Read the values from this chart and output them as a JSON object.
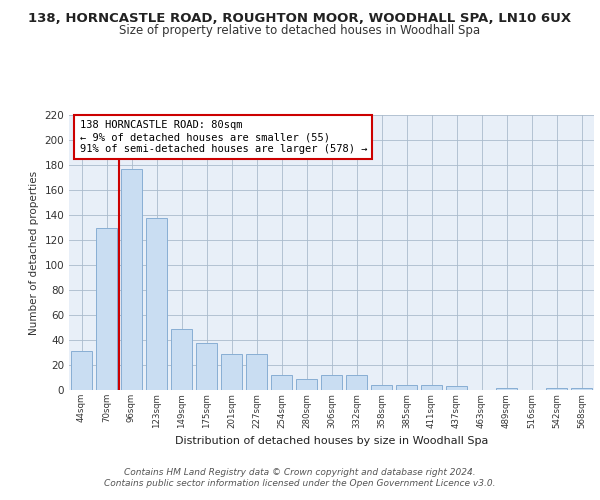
{
  "title_line1": "138, HORNCASTLE ROAD, ROUGHTON MOOR, WOODHALL SPA, LN10 6UX",
  "title_line2": "Size of property relative to detached houses in Woodhall Spa",
  "xlabel": "Distribution of detached houses by size in Woodhall Spa",
  "ylabel": "Number of detached properties",
  "categories": [
    "44sqm",
    "70sqm",
    "96sqm",
    "123sqm",
    "149sqm",
    "175sqm",
    "201sqm",
    "227sqm",
    "254sqm",
    "280sqm",
    "306sqm",
    "332sqm",
    "358sqm",
    "385sqm",
    "411sqm",
    "437sqm",
    "463sqm",
    "489sqm",
    "516sqm",
    "542sqm",
    "568sqm"
  ],
  "values": [
    31,
    130,
    177,
    138,
    49,
    38,
    29,
    29,
    12,
    9,
    12,
    12,
    4,
    4,
    4,
    3,
    0,
    2,
    0,
    2,
    2
  ],
  "bar_color": "#c9ddf2",
  "bar_edge_color": "#88aed4",
  "vline_color": "#cc0000",
  "annotation_text": "138 HORNCASTLE ROAD: 80sqm\n← 9% of detached houses are smaller (55)\n91% of semi-detached houses are larger (578) →",
  "annotation_box_color": "#ffffff",
  "annotation_box_edge": "#cc0000",
  "ylim": [
    0,
    220
  ],
  "yticks": [
    0,
    20,
    40,
    60,
    80,
    100,
    120,
    140,
    160,
    180,
    200,
    220
  ],
  "background_color": "#e8eff8",
  "footer_line1": "Contains HM Land Registry data © Crown copyright and database right 2024.",
  "footer_line2": "Contains public sector information licensed under the Open Government Licence v3.0.",
  "title_fontsize": 9.5,
  "subtitle_fontsize": 8.5,
  "footer_fontsize": 6.5
}
